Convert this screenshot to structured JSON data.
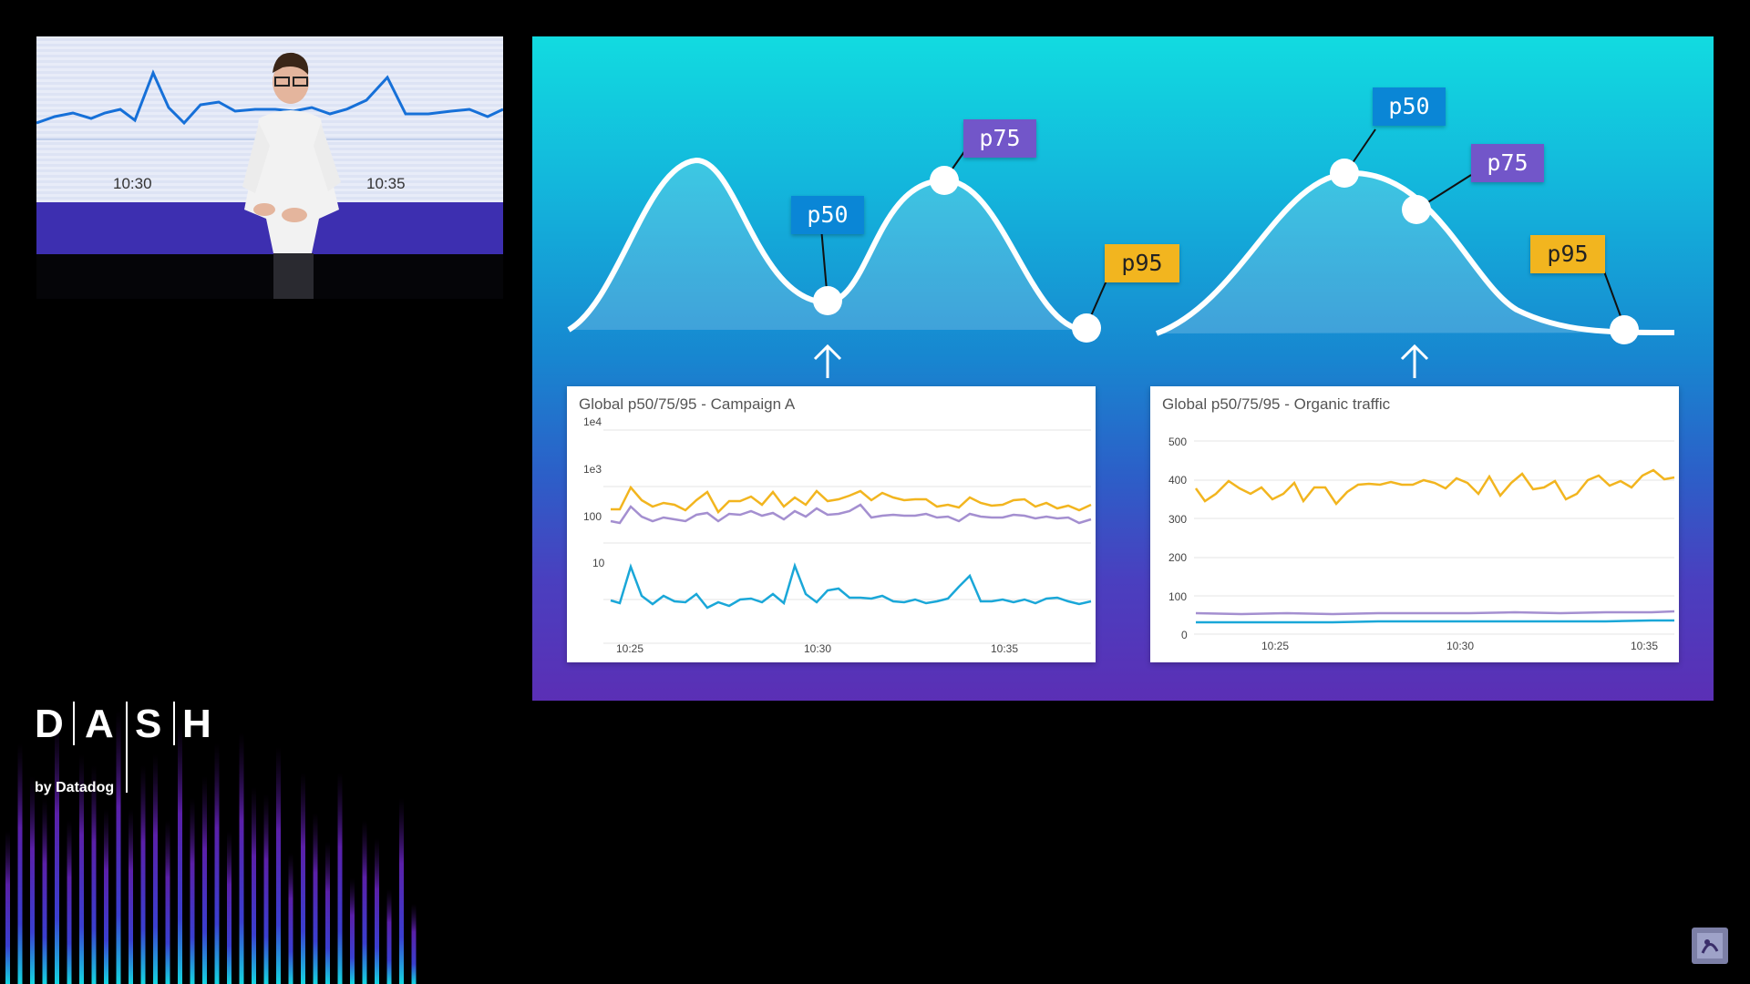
{
  "speaker_video": {
    "tick_labels": [
      "10:30",
      "10:35"
    ]
  },
  "slide": {
    "left_curve": {
      "tags": [
        {
          "label": "p50",
          "color": "#0a86d6"
        },
        {
          "label": "p75",
          "color": "#7256c9"
        },
        {
          "label": "p95",
          "color": "#f2b51f"
        }
      ]
    },
    "right_curve": {
      "tags": [
        {
          "label": "p50",
          "color": "#0a86d6"
        },
        {
          "label": "p75",
          "color": "#7256c9"
        },
        {
          "label": "p95",
          "color": "#f2b51f"
        }
      ]
    },
    "arrow_icon": "up-arrow-icon",
    "panel_left": {
      "title": "Global p50/75/95 - Campaign A",
      "y_ticks": [
        "1e4",
        "1e3",
        "100",
        "10"
      ],
      "x_ticks": [
        "10:25",
        "10:30",
        "10:35"
      ]
    },
    "panel_right": {
      "title": "Global p50/75/95 - Organic traffic",
      "y_ticks": [
        "500",
        "400",
        "300",
        "200",
        "100",
        "0"
      ],
      "x_ticks": [
        "10:25",
        "10:30",
        "10:35"
      ]
    }
  },
  "branding": {
    "logo_letters": [
      "D",
      "A",
      "S",
      "H"
    ],
    "byline": "by Datadog"
  },
  "colors": {
    "p95": "#f2b51f",
    "p75": "#a48fd0",
    "p50": "#1aa7d8"
  }
}
